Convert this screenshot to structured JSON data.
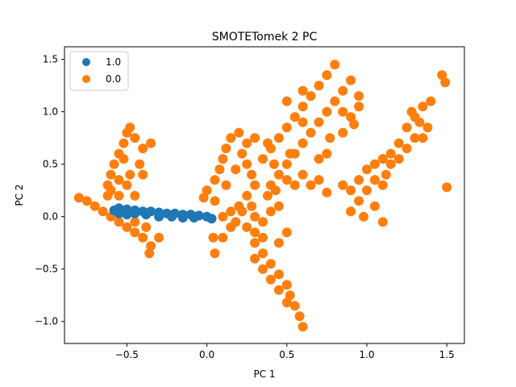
{
  "chart_data": {
    "type": "scatter",
    "title": "SMOTETomek 2 PC",
    "xlabel": "PC 1",
    "ylabel": "PC 2",
    "xlim": [
      -0.89,
      1.61
    ],
    "ylim": [
      -1.21,
      1.62
    ],
    "x_ticks": [
      -0.5,
      0.0,
      0.5,
      1.0,
      1.5
    ],
    "x_tick_labels": [
      "−0.5",
      "0.0",
      "0.5",
      "1.0",
      "1.5"
    ],
    "y_ticks": [
      -1.0,
      -0.5,
      0.0,
      0.5,
      1.0,
      1.5
    ],
    "y_tick_labels": [
      "−1.0",
      "−0.5",
      "0.0",
      "0.5",
      "1.0",
      "1.5"
    ],
    "grid": false,
    "legend_position": "top-left",
    "series": [
      {
        "name": "1.0",
        "color": "#1f77b4",
        "points": [
          [
            -0.58,
            0.06
          ],
          [
            -0.55,
            0.08
          ],
          [
            -0.5,
            0.07
          ],
          [
            -0.45,
            0.06
          ],
          [
            -0.4,
            0.05
          ],
          [
            -0.35,
            0.05
          ],
          [
            -0.3,
            0.04
          ],
          [
            -0.25,
            0.03
          ],
          [
            -0.2,
            0.03
          ],
          [
            -0.15,
            0.02
          ],
          [
            -0.1,
            0.02
          ],
          [
            -0.05,
            0.01
          ],
          [
            0.0,
            0.0
          ],
          [
            0.03,
            -0.02
          ],
          [
            -0.55,
            0.03
          ],
          [
            -0.5,
            0.02
          ],
          [
            -0.45,
            0.03
          ],
          [
            -0.38,
            0.02
          ],
          [
            -0.3,
            0.0
          ],
          [
            -0.22,
            0.0
          ],
          [
            -0.15,
            -0.01
          ],
          [
            -0.08,
            -0.01
          ]
        ]
      },
      {
        "name": "0.0",
        "color": "#ff7f0e",
        "points": [
          [
            -0.8,
            0.18
          ],
          [
            -0.75,
            0.15
          ],
          [
            -0.7,
            0.1
          ],
          [
            -0.65,
            0.05
          ],
          [
            -0.6,
            0.0
          ],
          [
            -0.55,
            -0.05
          ],
          [
            -0.5,
            -0.1
          ],
          [
            -0.45,
            -0.15
          ],
          [
            -0.4,
            -0.2
          ],
          [
            -0.35,
            -0.28
          ],
          [
            -0.62,
            0.2
          ],
          [
            -0.62,
            0.3
          ],
          [
            -0.6,
            0.4
          ],
          [
            -0.58,
            0.5
          ],
          [
            -0.55,
            0.6
          ],
          [
            -0.52,
            0.7
          ],
          [
            -0.5,
            0.8
          ],
          [
            -0.48,
            0.85
          ],
          [
            -0.45,
            0.75
          ],
          [
            -0.4,
            0.65
          ],
          [
            -0.42,
            0.5
          ],
          [
            -0.48,
            0.4
          ],
          [
            -0.5,
            0.3
          ],
          [
            -0.55,
            0.2
          ],
          [
            -0.45,
            0.2
          ],
          [
            -0.4,
            0.4
          ],
          [
            -0.35,
            0.7
          ],
          [
            -0.55,
            0.35
          ],
          [
            -0.6,
            0.25
          ],
          [
            -0.52,
            0.55
          ],
          [
            -0.36,
            -0.35
          ],
          [
            -0.3,
            -0.2
          ],
          [
            -0.38,
            -0.1
          ],
          [
            -0.45,
            -0.05
          ],
          [
            -0.02,
            0.18
          ],
          [
            0.0,
            0.25
          ],
          [
            0.05,
            0.35
          ],
          [
            0.08,
            0.45
          ],
          [
            0.1,
            0.55
          ],
          [
            0.12,
            0.65
          ],
          [
            0.15,
            0.75
          ],
          [
            0.2,
            0.8
          ],
          [
            0.22,
            0.6
          ],
          [
            0.25,
            0.5
          ],
          [
            0.28,
            0.4
          ],
          [
            0.3,
            0.3
          ],
          [
            0.25,
            0.2
          ],
          [
            0.2,
            0.1
          ],
          [
            0.15,
            0.05
          ],
          [
            0.1,
            0.0
          ],
          [
            0.12,
            0.3
          ],
          [
            0.18,
            0.45
          ],
          [
            0.05,
            0.15
          ],
          [
            0.25,
            0.7
          ],
          [
            0.3,
            0.75
          ],
          [
            0.22,
            0.05
          ],
          [
            0.18,
            -0.05
          ],
          [
            0.28,
            0.1
          ],
          [
            0.3,
            0.0
          ],
          [
            0.25,
            -0.1
          ],
          [
            0.3,
            -0.15
          ],
          [
            0.35,
            -0.2
          ],
          [
            0.3,
            -0.25
          ],
          [
            0.35,
            -0.35
          ],
          [
            0.4,
            -0.45
          ],
          [
            0.45,
            -0.55
          ],
          [
            0.5,
            -0.65
          ],
          [
            0.52,
            -0.75
          ],
          [
            0.55,
            -0.85
          ],
          [
            0.58,
            -0.95
          ],
          [
            0.6,
            -1.05
          ],
          [
            0.3,
            -0.4
          ],
          [
            0.35,
            -0.5
          ],
          [
            0.4,
            -0.6
          ],
          [
            0.45,
            -0.7
          ],
          [
            0.5,
            -0.82
          ],
          [
            0.35,
            -0.05
          ],
          [
            0.4,
            0.05
          ],
          [
            0.45,
            -0.25
          ],
          [
            0.5,
            -0.15
          ],
          [
            0.45,
            0.1
          ],
          [
            0.38,
            0.2
          ],
          [
            0.43,
            0.25
          ],
          [
            0.1,
            -0.2
          ],
          [
            0.05,
            -0.35
          ],
          [
            0.04,
            -0.2
          ],
          [
            0.15,
            -0.1
          ],
          [
            0.4,
            0.3
          ],
          [
            0.45,
            0.4
          ],
          [
            0.5,
            0.5
          ],
          [
            0.55,
            0.6
          ],
          [
            0.6,
            0.7
          ],
          [
            0.65,
            0.8
          ],
          [
            0.7,
            0.9
          ],
          [
            0.75,
            1.0
          ],
          [
            0.8,
            1.1
          ],
          [
            0.85,
            1.2
          ],
          [
            0.9,
            1.3
          ],
          [
            0.8,
            1.45
          ],
          [
            0.75,
            1.35
          ],
          [
            0.7,
            1.25
          ],
          [
            0.65,
            1.15
          ],
          [
            0.6,
            1.05
          ],
          [
            0.55,
            0.95
          ],
          [
            0.5,
            0.85
          ],
          [
            0.45,
            0.75
          ],
          [
            0.4,
            0.65
          ],
          [
            0.42,
            0.5
          ],
          [
            0.5,
            0.35
          ],
          [
            0.55,
            0.3
          ],
          [
            0.6,
            0.4
          ],
          [
            0.7,
            0.55
          ],
          [
            0.75,
            0.6
          ],
          [
            0.85,
            0.8
          ],
          [
            0.9,
            0.95
          ],
          [
            0.95,
            1.05
          ],
          [
            0.6,
            1.2
          ],
          [
            0.5,
            1.1
          ],
          [
            0.65,
            0.3
          ],
          [
            0.7,
            0.35
          ],
          [
            0.35,
            0.55
          ],
          [
            0.38,
            0.7
          ],
          [
            0.92,
            0.88
          ],
          [
            0.95,
            1.15
          ],
          [
            0.52,
            0.6
          ],
          [
            0.85,
            1.0
          ],
          [
            0.6,
            0.9
          ],
          [
            0.77,
            0.75
          ],
          [
            0.9,
            0.25
          ],
          [
            0.95,
            0.35
          ],
          [
            1.0,
            0.45
          ],
          [
            1.05,
            0.5
          ],
          [
            1.1,
            0.55
          ],
          [
            1.15,
            0.6
          ],
          [
            1.2,
            0.7
          ],
          [
            1.25,
            0.85
          ],
          [
            1.3,
            0.95
          ],
          [
            1.35,
            1.05
          ],
          [
            1.4,
            1.1
          ],
          [
            1.3,
            0.75
          ],
          [
            1.25,
            0.65
          ],
          [
            1.15,
            0.5
          ],
          [
            1.05,
            0.35
          ],
          [
            1.0,
            0.25
          ],
          [
            0.95,
            0.15
          ],
          [
            0.9,
            0.05
          ],
          [
            0.98,
            0.0
          ],
          [
            1.05,
            0.1
          ],
          [
            1.1,
            0.3
          ],
          [
            1.12,
            0.4
          ],
          [
            1.2,
            0.55
          ],
          [
            1.35,
            0.75
          ],
          [
            1.1,
            -0.05
          ],
          [
            0.85,
            0.3
          ],
          [
            0.75,
            0.23
          ],
          [
            1.47,
            1.35
          ],
          [
            1.49,
            1.28
          ],
          [
            1.5,
            0.28
          ],
          [
            1.28,
            1.0
          ],
          [
            1.33,
            0.9
          ],
          [
            1.38,
            0.85
          ]
        ]
      }
    ]
  }
}
